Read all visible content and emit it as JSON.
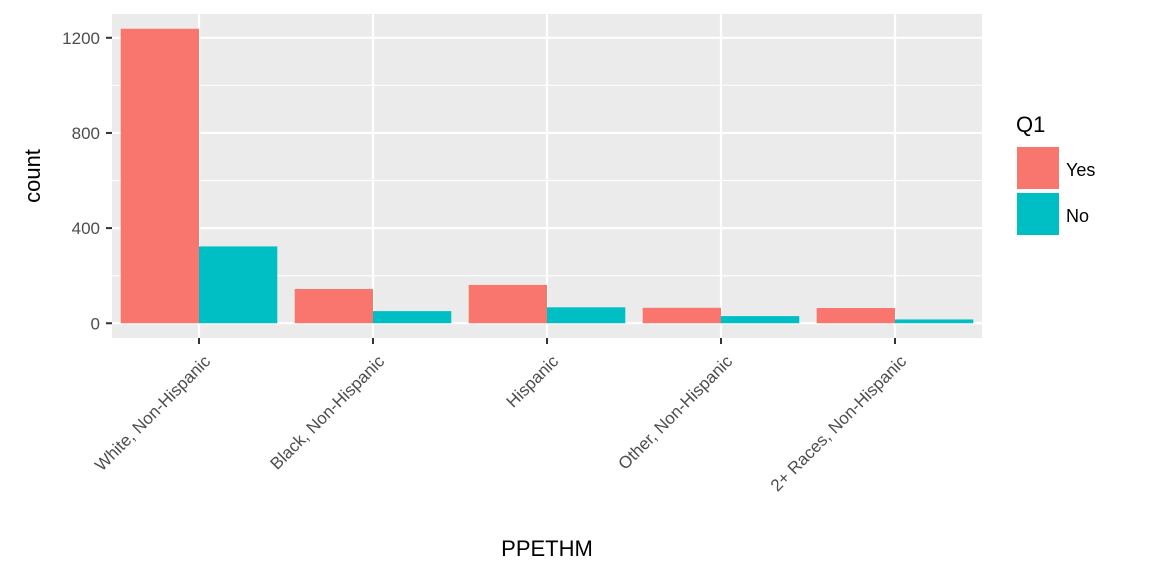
{
  "chart_data": {
    "type": "bar",
    "xlabel": "PPETHM",
    "ylabel": "count",
    "categories": [
      "White, Non-Hispanic",
      "Black, Non-Hispanic",
      "Hispanic",
      "Other, Non-Hispanic",
      "2+ Races, Non-Hispanic"
    ],
    "series": [
      {
        "name": "Yes",
        "color": "#F8766D",
        "values": [
          1238,
          144,
          161,
          65,
          64
        ]
      },
      {
        "name": "No",
        "color": "#00BFC4",
        "values": [
          323,
          51,
          67,
          30,
          16
        ]
      }
    ],
    "ylim": [
      -62,
      1300
    ],
    "yticks": [
      0,
      400,
      800,
      1200
    ],
    "grid": true,
    "legend": {
      "title": "Q1",
      "position": "right"
    }
  }
}
